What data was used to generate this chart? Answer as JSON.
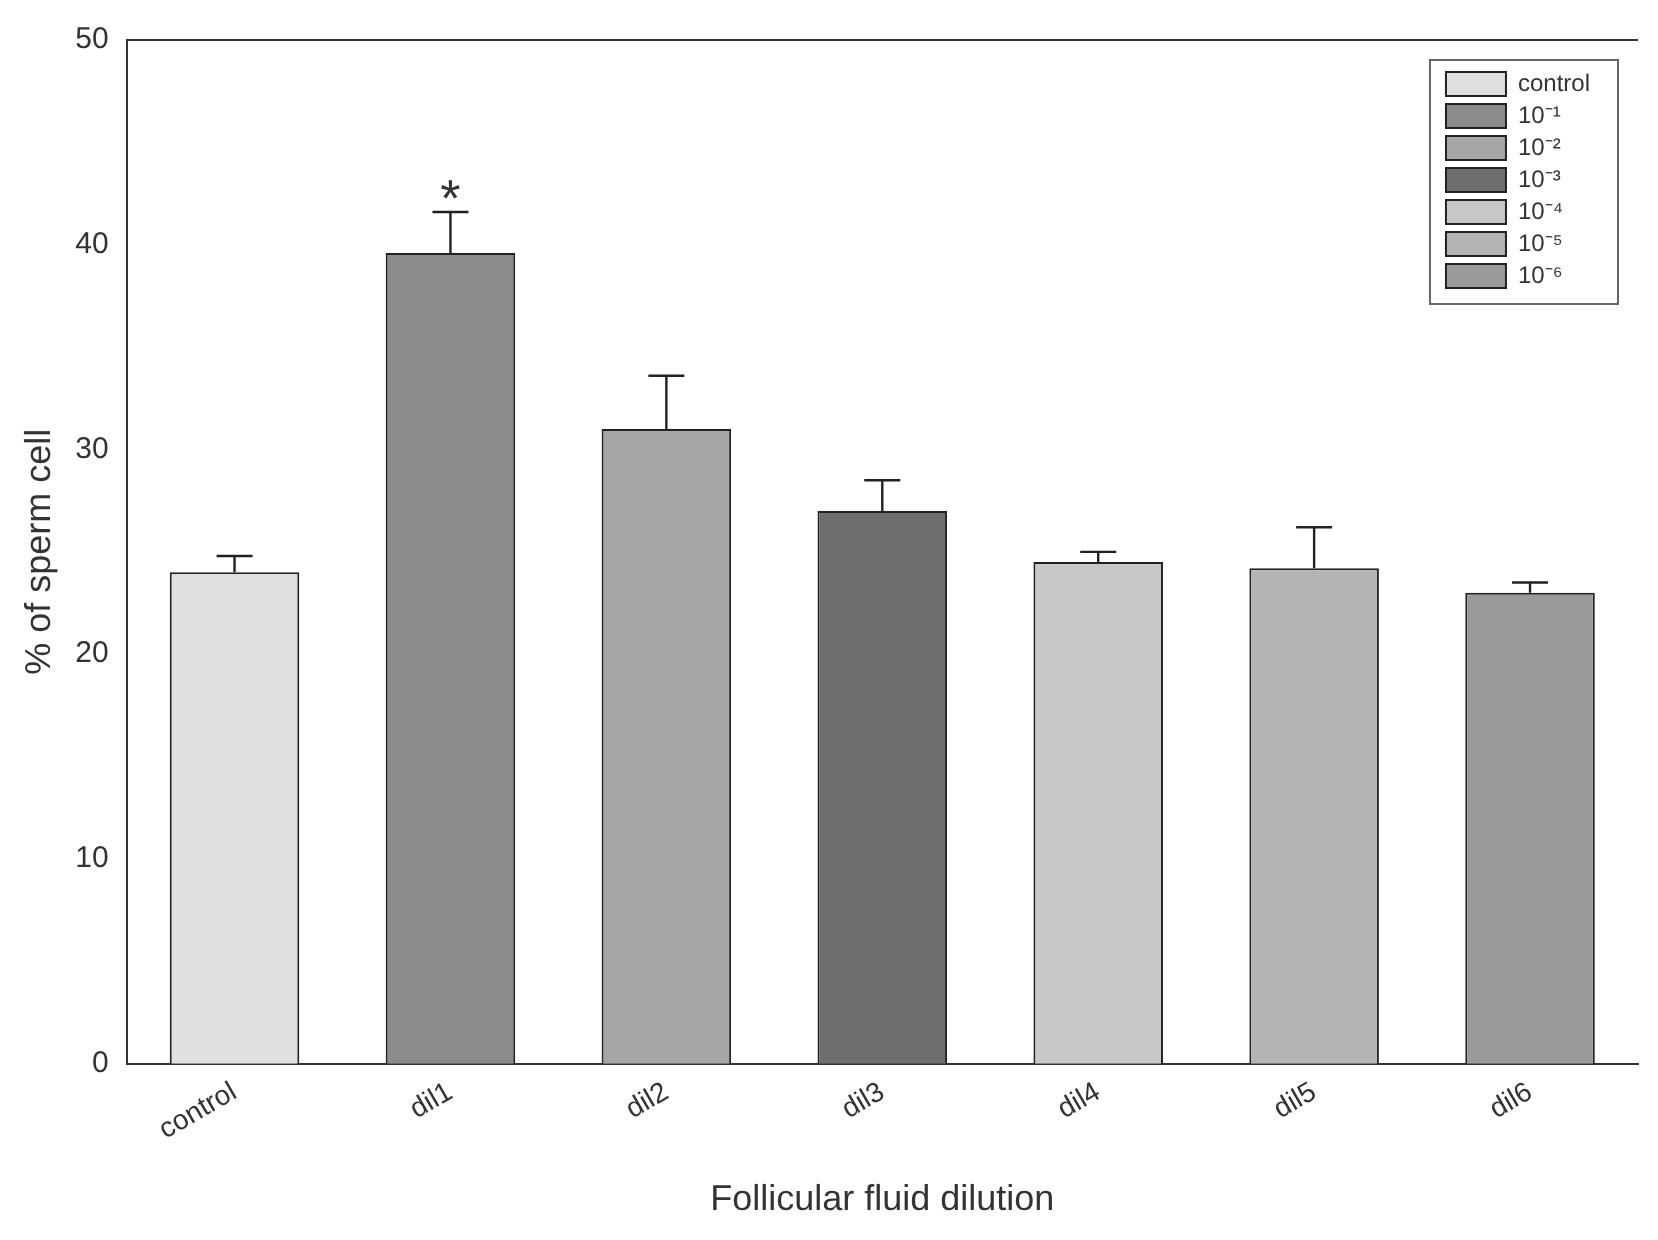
{
  "chart_data": {
    "type": "bar",
    "xlabel": "Follicular fluid dilution",
    "ylabel": "% of sperm cell",
    "categories": [
      "control",
      "dil1",
      "dil2",
      "dil3",
      "dil4",
      "dil5",
      "dil6"
    ],
    "series": [
      {
        "name": "control",
        "color": "#e0e0e0",
        "values": [
          24,
          null,
          null,
          null,
          null,
          null,
          null
        ],
        "errors": [
          [
            24,
            24.8
          ],
          null,
          null,
          null,
          null,
          null,
          null
        ]
      },
      {
        "name": "10⁻¹",
        "color": "#8c8c8c",
        "values": [
          null,
          39.6,
          null,
          null,
          null,
          null,
          null
        ],
        "errors": [
          null,
          [
            39.6,
            41.6
          ],
          null,
          null,
          null,
          null,
          null
        ]
      },
      {
        "name": "10⁻²",
        "color": "#a6a6a6",
        "values": [
          null,
          null,
          31,
          null,
          null,
          null,
          null
        ],
        "errors": [
          null,
          null,
          [
            31,
            33.6
          ],
          null,
          null,
          null,
          null
        ]
      },
      {
        "name": "10⁻³",
        "color": "#6e6e6e",
        "values": [
          null,
          null,
          null,
          27,
          null,
          null,
          null
        ],
        "errors": [
          null,
          null,
          null,
          [
            27,
            28.5
          ],
          null,
          null,
          null
        ]
      },
      {
        "name": "10⁻⁴",
        "color": "#c8c8c8",
        "values": [
          null,
          null,
          null,
          null,
          24.5,
          null,
          null
        ],
        "errors": [
          null,
          null,
          null,
          null,
          [
            24.5,
            25
          ],
          null,
          null
        ]
      },
      {
        "name": "10⁻⁵",
        "color": "#b4b4b4",
        "values": [
          null,
          null,
          null,
          null,
          null,
          24.2,
          null
        ],
        "errors": [
          null,
          null,
          null,
          null,
          null,
          [
            24.2,
            26.2
          ],
          null
        ]
      },
      {
        "name": "10⁻⁶",
        "color": "#9a9a9a",
        "values": [
          null,
          null,
          null,
          null,
          null,
          null,
          23
        ],
        "errors": [
          null,
          null,
          null,
          null,
          null,
          null,
          [
            23,
            23.5
          ]
        ]
      }
    ],
    "ylim": [
      0,
      50
    ],
    "yticks": [
      0,
      10,
      20,
      30,
      40,
      50
    ],
    "grid": false,
    "legend": "top right",
    "annotations": [
      {
        "text": "*",
        "x": "dil1",
        "y": 41.6
      }
    ]
  }
}
